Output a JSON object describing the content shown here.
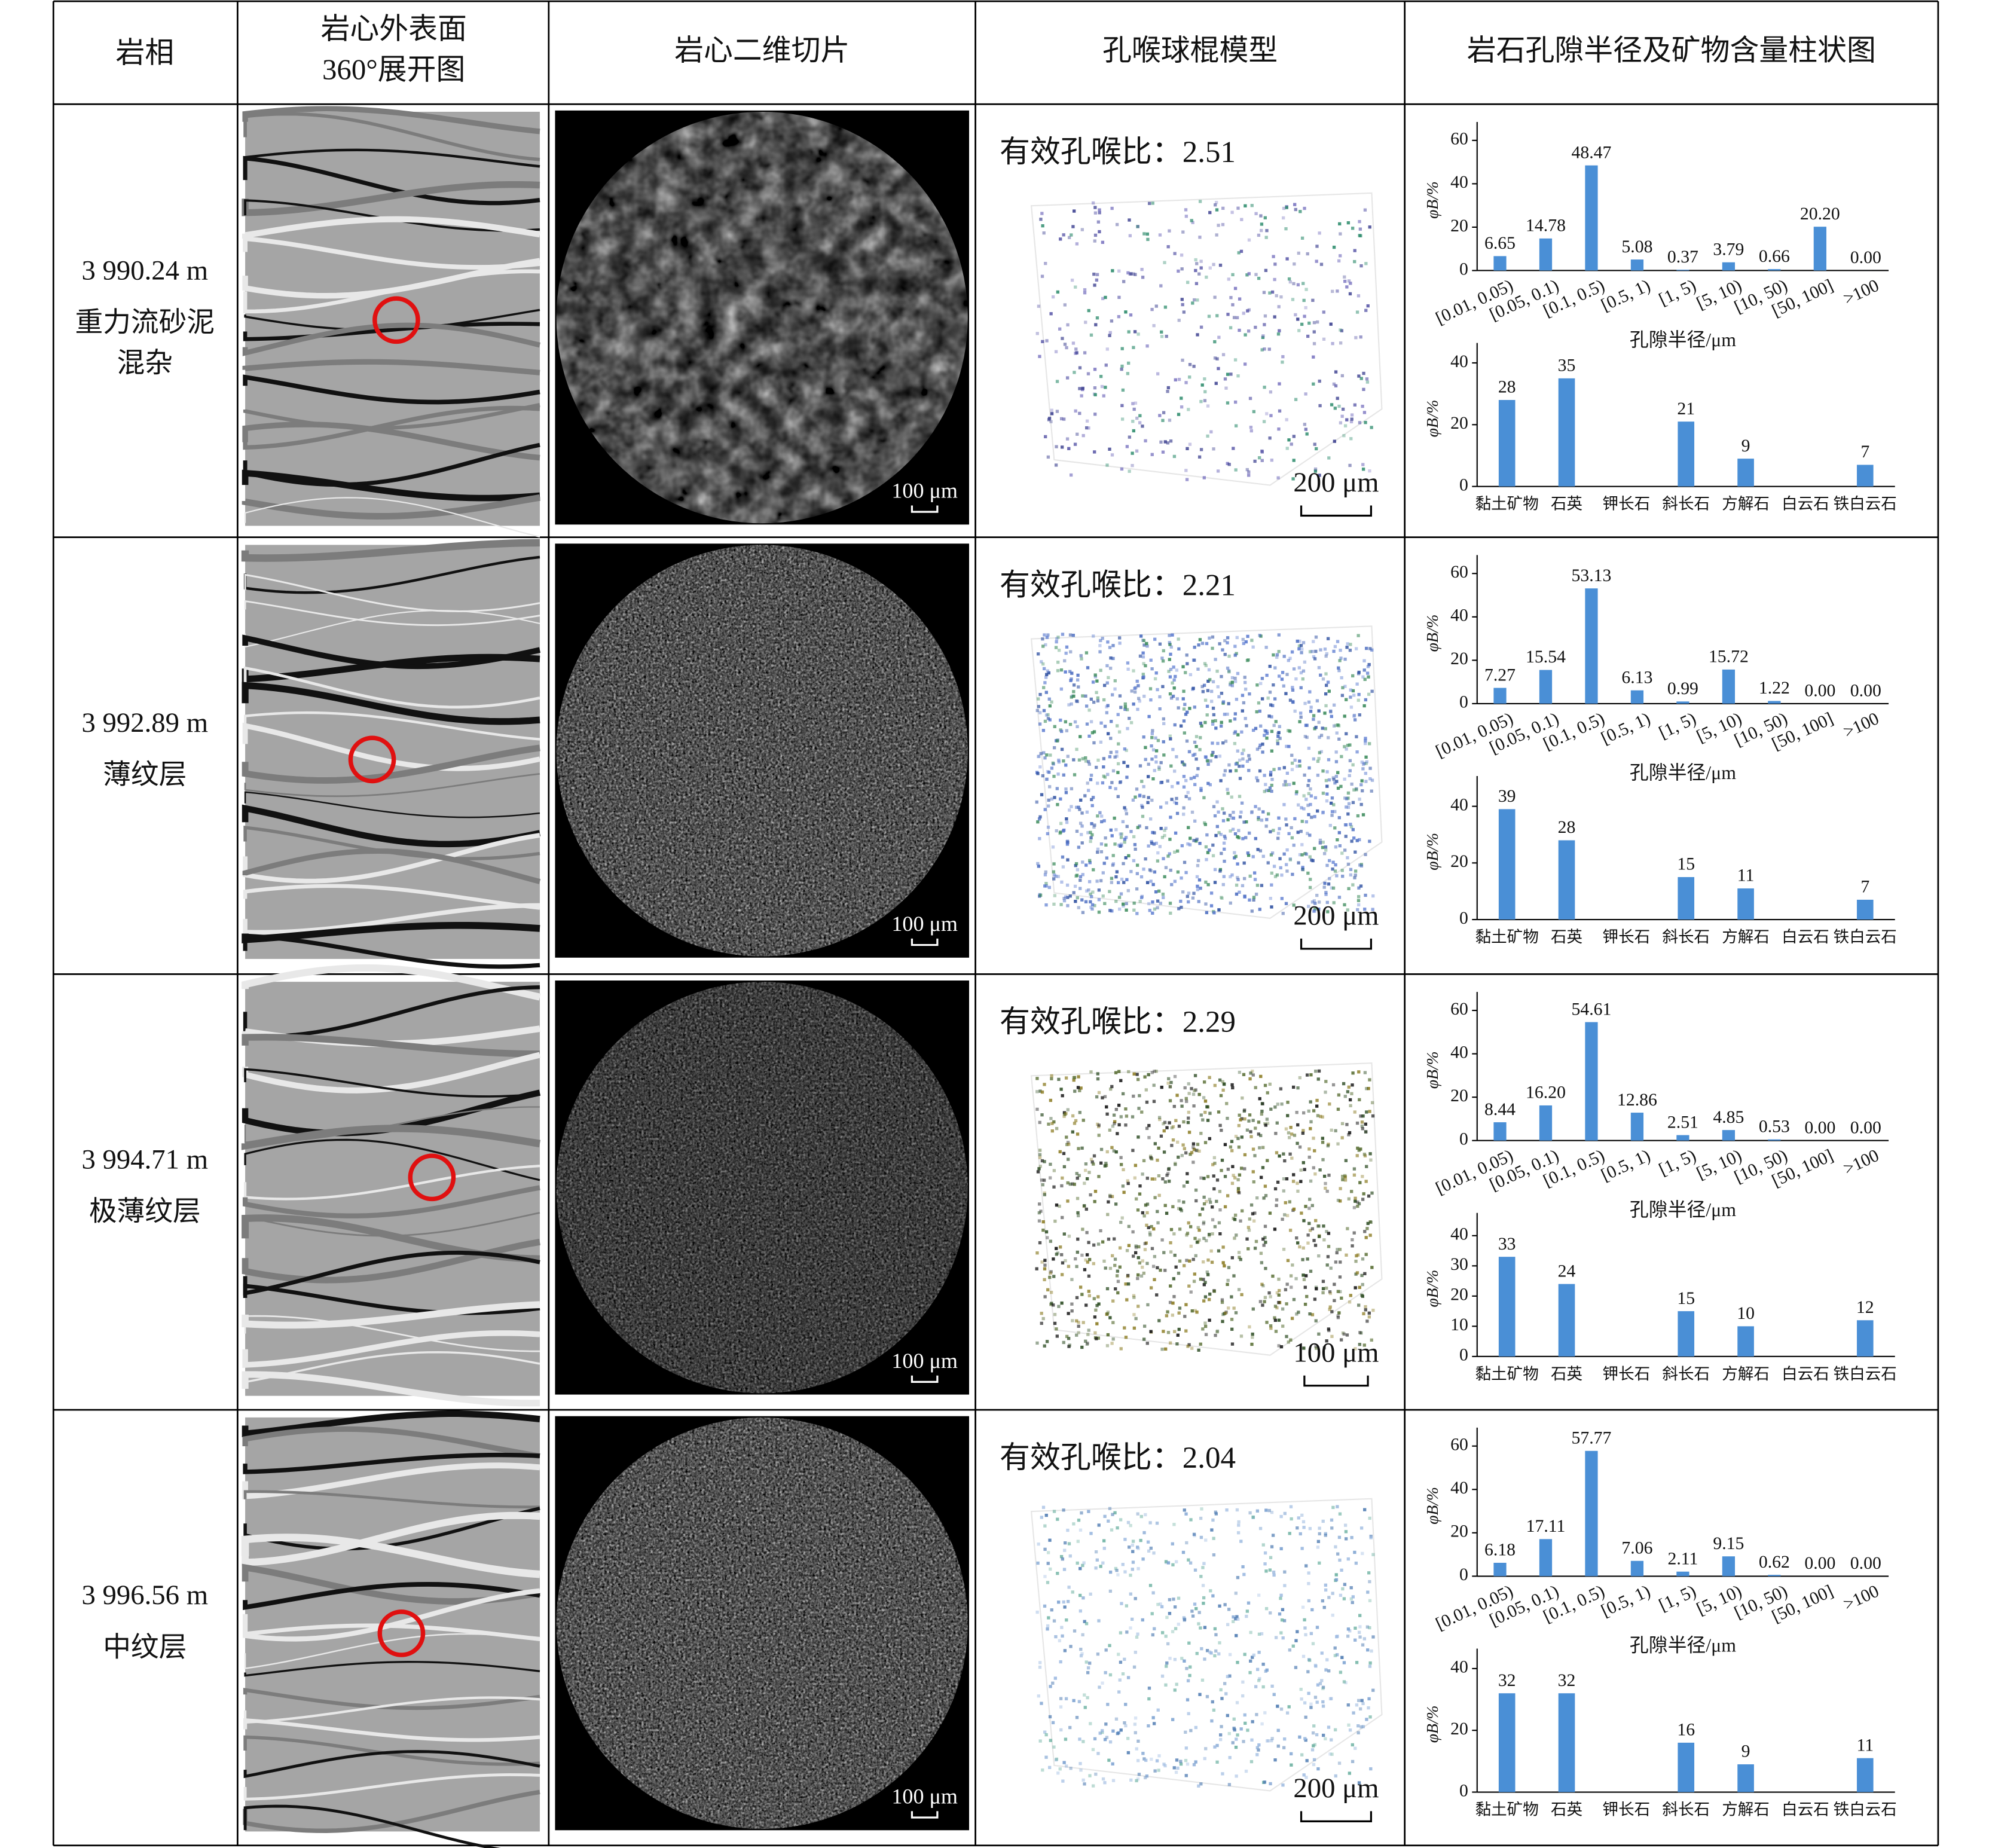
{
  "header": {
    "columns": [
      "岩相",
      [
        "岩心外表面",
        "360°展开图"
      ],
      "岩心二维切片",
      "孔喉球棍模型",
      "岩石孔隙半径及矿物含量柱状图"
    ]
  },
  "rows": [
    {
      "depth": "3 990.24 m",
      "facies": [
        "重力流砂泥",
        "混杂"
      ],
      "pore_throat_ratio": "有效孔喉比：2.51",
      "ct_scale": "100 μm",
      "model_scale": "200 μm",
      "pore_chart": {
        "type": "bar",
        "categories": [
          "[0.01, 0.05)",
          "[0.05, 0.1)",
          "[0.1, 0.5)",
          "[0.5, 1)",
          "[1, 5)",
          "[5, 10)",
          "[10, 50)",
          "[50, 100]",
          ">100"
        ],
        "values": [
          6.65,
          14.78,
          48.47,
          5.08,
          0.37,
          3.79,
          0.66,
          20.2,
          0
        ],
        "value_labels": [
          "6.65",
          "14.78",
          "48.47",
          "5.08",
          "0.37",
          "3.79",
          "0.66",
          "20.20",
          "0.00"
        ],
        "xlabel": "孔隙半径/μm",
        "ylabel": "φB/%",
        "ylim": [
          0,
          65
        ],
        "yticks": [
          0,
          20,
          40,
          60
        ],
        "color": "#4a8fd6"
      },
      "mineral_chart": {
        "type": "bar",
        "categories": [
          "黏土矿物",
          "石英",
          "钾长石",
          "斜长石",
          "方解石",
          "白云石",
          "铁白云石"
        ],
        "values": [
          28,
          35,
          null,
          21,
          9,
          null,
          7
        ],
        "ylabel": "φB/%",
        "ylim": [
          0,
          44
        ],
        "yticks": [
          0,
          20,
          40
        ],
        "color": "#4a8fd6"
      }
    },
    {
      "depth": "3 992.89 m",
      "facies": [
        "薄纹层"
      ],
      "pore_throat_ratio": "有效孔喉比：2.21",
      "ct_scale": "100 μm",
      "model_scale": "200 μm",
      "pore_chart": {
        "type": "bar",
        "categories": [
          "[0.01, 0.05)",
          "[0.05, 0.1)",
          "[0.1, 0.5)",
          "[0.5, 1)",
          "[1, 5)",
          "[5, 10)",
          "[10, 50)",
          "[50, 100]",
          ">100"
        ],
        "values": [
          7.27,
          15.54,
          53.13,
          6.13,
          0.99,
          15.72,
          1.22,
          0,
          0
        ],
        "value_labels": [
          "7.27",
          "15.54",
          "53.13",
          "6.13",
          "0.99",
          "15.72",
          "1.22",
          "0.00",
          "0.00"
        ],
        "xlabel": "孔隙半径/μm",
        "ylabel": "φB/%",
        "ylim": [
          0,
          65
        ],
        "yticks": [
          0,
          20,
          40,
          60
        ],
        "color": "#4a8fd6"
      },
      "mineral_chart": {
        "type": "bar",
        "categories": [
          "黏土矿物",
          "石英",
          "钾长石",
          "斜长石",
          "方解石",
          "白云石",
          "铁白云石"
        ],
        "values": [
          39,
          28,
          null,
          15,
          11,
          null,
          7
        ],
        "ylabel": "φB/%",
        "ylim": [
          0,
          48
        ],
        "yticks": [
          0,
          20,
          40
        ],
        "color": "#4a8fd6"
      }
    },
    {
      "depth": "3 994.71 m",
      "facies": [
        "极薄纹层"
      ],
      "pore_throat_ratio": "有效孔喉比：2.29",
      "ct_scale": "100 μm",
      "model_scale": "100 μm",
      "pore_chart": {
        "type": "bar",
        "categories": [
          "[0.01, 0.05)",
          "[0.05, 0.1)",
          "[0.1, 0.5)",
          "[0.5, 1)",
          "[1, 5)",
          "[5, 10)",
          "[10, 50)",
          "[50, 100]",
          ">100"
        ],
        "values": [
          8.44,
          16.2,
          54.61,
          12.86,
          2.51,
          4.85,
          0.53,
          0,
          0
        ],
        "value_labels": [
          "8.44",
          "16.20",
          "54.61",
          "12.86",
          "2.51",
          "4.85",
          "0.53",
          "0.00",
          "0.00"
        ],
        "xlabel": "孔隙半径/μm",
        "ylabel": "φB/%",
        "ylim": [
          0,
          65
        ],
        "yticks": [
          0,
          20,
          40,
          60
        ],
        "color": "#4a8fd6"
      },
      "mineral_chart": {
        "type": "bar",
        "categories": [
          "黏土矿物",
          "石英",
          "钾长石",
          "斜长石",
          "方解石",
          "白云石",
          "铁白云石"
        ],
        "values": [
          33,
          24,
          null,
          15,
          10,
          null,
          12
        ],
        "ylabel": "φB/%",
        "ylim": [
          0,
          45
        ],
        "yticks": [
          0,
          10,
          20,
          30,
          40
        ],
        "color": "#4a8fd6"
      }
    },
    {
      "depth": "3 996.56 m",
      "facies": [
        "中纹层"
      ],
      "pore_throat_ratio": "有效孔喉比：2.04",
      "ct_scale": "100 μm",
      "model_scale": "200 μm",
      "pore_chart": {
        "type": "bar",
        "categories": [
          "[0.01, 0.05)",
          "[0.05, 0.1)",
          "[0.1, 0.5)",
          "[0.5, 1)",
          "[1, 5)",
          "[5, 10)",
          "[10, 50)",
          "[50, 100]",
          ">100"
        ],
        "values": [
          6.18,
          17.11,
          57.77,
          7.06,
          2.11,
          9.15,
          0.62,
          0,
          0
        ],
        "value_labels": [
          "6.18",
          "17.11",
          "57.77",
          "7.06",
          "2.11",
          "9.15",
          "0.62",
          "0.00",
          "0.00"
        ],
        "xlabel": "孔隙半径/μm",
        "ylabel": "φB/%",
        "ylim": [
          0,
          65
        ],
        "yticks": [
          0,
          20,
          40,
          60
        ],
        "color": "#4a8fd6"
      },
      "mineral_chart": {
        "type": "bar",
        "categories": [
          "黏土矿物",
          "石英",
          "钾长石",
          "斜长石",
          "方解石",
          "白云石",
          "铁白云石"
        ],
        "values": [
          32,
          32,
          null,
          16,
          9,
          null,
          11
        ],
        "ylabel": "φB/%",
        "ylim": [
          0,
          44
        ],
        "yticks": [
          0,
          20,
          40
        ],
        "color": "#4a8fd6"
      }
    }
  ]
}
